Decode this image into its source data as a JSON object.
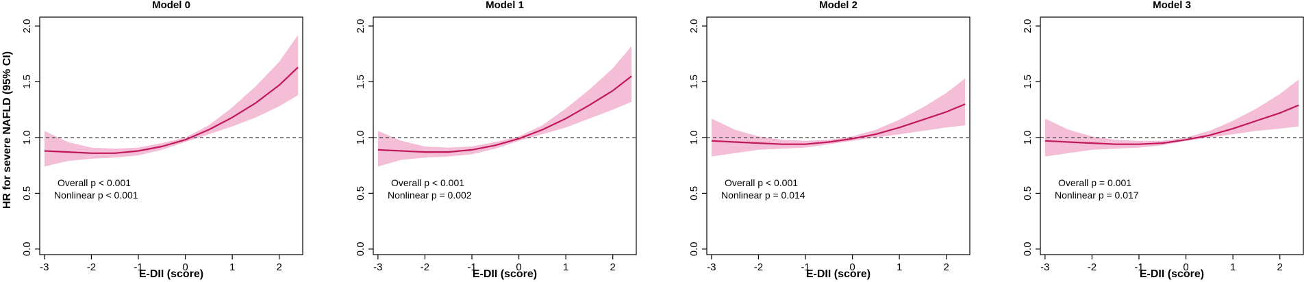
{
  "figure": {
    "shared_xlabel": "E-DII (score)",
    "shared_ylabel": "HR for severe NAFLD (95% CI)"
  },
  "colors": {
    "line": "#c2185b",
    "band": "#f2b7d2",
    "reference": "#555555",
    "axis": "#000000"
  },
  "chart_data": [
    {
      "type": "line",
      "title": "Model 0",
      "xlabel": "E-DII (score)",
      "ylabel": "HR for severe NAFLD (95% CI)",
      "xlim": [
        -3.1,
        2.5
      ],
      "ylim": [
        -0.05,
        2.08
      ],
      "xticks": [
        -3,
        -2,
        -1,
        0,
        1,
        2
      ],
      "yticks": [
        0.0,
        0.5,
        1.0,
        1.5,
        2.0
      ],
      "ytick_labels": [
        "0.0",
        "0.5",
        "1.0",
        "1.5",
        "2.0"
      ],
      "reference_line": 1.0,
      "x": [
        -3.0,
        -2.5,
        -2.0,
        -1.5,
        -1.0,
        -0.5,
        0.0,
        0.5,
        1.0,
        1.5,
        2.0,
        2.4
      ],
      "hr": [
        0.88,
        0.87,
        0.86,
        0.86,
        0.88,
        0.92,
        0.98,
        1.07,
        1.18,
        1.31,
        1.47,
        1.63
      ],
      "lower": [
        0.74,
        0.79,
        0.81,
        0.82,
        0.84,
        0.89,
        0.96,
        1.03,
        1.1,
        1.18,
        1.28,
        1.38
      ],
      "upper": [
        1.06,
        0.96,
        0.91,
        0.9,
        0.91,
        0.95,
        1.0,
        1.11,
        1.27,
        1.46,
        1.68,
        1.92
      ],
      "annotations": [
        "Overall p < 0.001",
        "Nonlinear p < 0.001"
      ]
    },
    {
      "type": "line",
      "title": "Model 1",
      "xlabel": "E-DII (score)",
      "ylabel": "HR for severe NAFLD (95% CI)",
      "xlim": [
        -3.1,
        2.5
      ],
      "ylim": [
        -0.05,
        2.08
      ],
      "xticks": [
        -3,
        -2,
        -1,
        0,
        1,
        2
      ],
      "yticks": [
        0.0,
        0.5,
        1.0,
        1.5,
        2.0
      ],
      "ytick_labels": [
        "0.0",
        "0.5",
        "1.0",
        "1.5",
        "2.0"
      ],
      "reference_line": 1.0,
      "x": [
        -3.0,
        -2.5,
        -2.0,
        -1.5,
        -1.0,
        -0.5,
        0.0,
        0.5,
        1.0,
        1.5,
        2.0,
        2.4
      ],
      "hr": [
        0.89,
        0.88,
        0.87,
        0.87,
        0.89,
        0.93,
        0.99,
        1.07,
        1.17,
        1.29,
        1.42,
        1.55
      ],
      "lower": [
        0.74,
        0.8,
        0.82,
        0.83,
        0.85,
        0.9,
        0.97,
        1.03,
        1.09,
        1.17,
        1.25,
        1.32
      ],
      "upper": [
        1.06,
        0.97,
        0.92,
        0.91,
        0.92,
        0.96,
        1.01,
        1.11,
        1.26,
        1.43,
        1.62,
        1.82
      ],
      "annotations": [
        "Overall p < 0.001",
        "Nonlinear p = 0.002"
      ]
    },
    {
      "type": "line",
      "title": "Model 2",
      "xlabel": "E-DII (score)",
      "ylabel": "HR for severe NAFLD (95% CI)",
      "xlim": [
        -3.1,
        2.5
      ],
      "ylim": [
        -0.05,
        2.08
      ],
      "xticks": [
        -3,
        -2,
        -1,
        0,
        1,
        2
      ],
      "yticks": [
        0.0,
        0.5,
        1.0,
        1.5,
        2.0
      ],
      "ytick_labels": [
        "0.0",
        "0.5",
        "1.0",
        "1.5",
        "2.0"
      ],
      "reference_line": 1.0,
      "x": [
        -3.0,
        -2.5,
        -2.0,
        -1.5,
        -1.0,
        -0.5,
        0.0,
        0.5,
        1.0,
        1.5,
        2.0,
        2.4
      ],
      "hr": [
        0.97,
        0.96,
        0.95,
        0.94,
        0.94,
        0.96,
        0.99,
        1.03,
        1.09,
        1.16,
        1.23,
        1.3
      ],
      "lower": [
        0.83,
        0.86,
        0.89,
        0.9,
        0.91,
        0.94,
        0.97,
        1.0,
        1.03,
        1.06,
        1.09,
        1.11
      ],
      "upper": [
        1.17,
        1.07,
        1.01,
        0.98,
        0.97,
        0.98,
        1.01,
        1.07,
        1.16,
        1.27,
        1.4,
        1.53
      ],
      "annotations": [
        "Overall p  < 0.001",
        "Nonlinear p = 0.014"
      ]
    },
    {
      "type": "line",
      "title": "Model 3",
      "xlabel": "E-DII (score)",
      "ylabel": "HR for severe NAFLD (95% CI)",
      "xlim": [
        -3.1,
        2.5
      ],
      "ylim": [
        -0.05,
        2.08
      ],
      "xticks": [
        -3,
        -2,
        -1,
        0,
        1,
        2
      ],
      "yticks": [
        0.0,
        0.5,
        1.0,
        1.5,
        2.0
      ],
      "ytick_labels": [
        "0.0",
        "0.5",
        "1.0",
        "1.5",
        "2.0"
      ],
      "reference_line": 1.0,
      "x": [
        -3.0,
        -2.5,
        -2.0,
        -1.5,
        -1.0,
        -0.5,
        0.0,
        0.5,
        1.0,
        1.5,
        2.0,
        2.4
      ],
      "hr": [
        0.97,
        0.96,
        0.95,
        0.94,
        0.94,
        0.95,
        0.98,
        1.02,
        1.08,
        1.15,
        1.22,
        1.29
      ],
      "lower": [
        0.83,
        0.86,
        0.89,
        0.9,
        0.91,
        0.93,
        0.97,
        1.0,
        1.03,
        1.06,
        1.08,
        1.1
      ],
      "upper": [
        1.17,
        1.07,
        1.01,
        0.98,
        0.97,
        0.97,
        1.0,
        1.06,
        1.15,
        1.26,
        1.39,
        1.52
      ],
      "annotations": [
        "Overall p = 0.001",
        "Nonlinear p = 0.017"
      ]
    }
  ]
}
